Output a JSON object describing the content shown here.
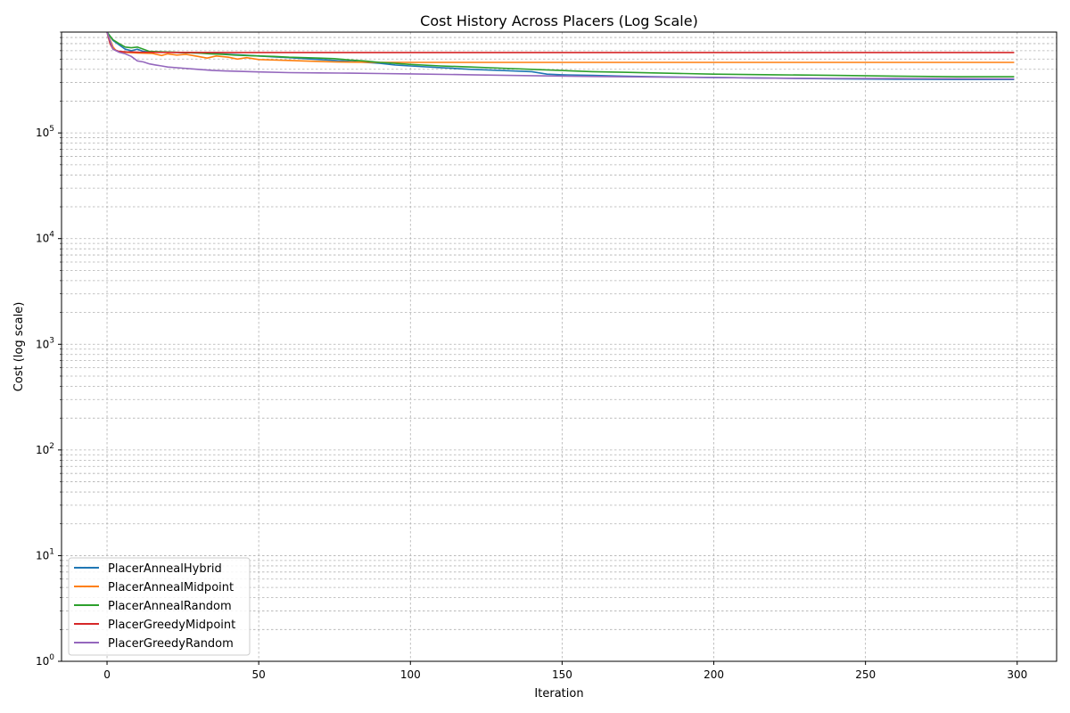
{
  "chart_data": {
    "type": "line",
    "title": "Cost History Across Placers (Log Scale)",
    "xlabel": "Iteration",
    "ylabel": "Cost (log scale)",
    "xlim": [
      -15,
      313
    ],
    "ylim": [
      1,
      900000
    ],
    "yscale": "log",
    "grid": true,
    "legend_position": "lower-left",
    "x_ticks": [
      "0",
      "50",
      "100",
      "150",
      "200",
      "250",
      "300"
    ],
    "y_tick_bases": [
      "10",
      "10",
      "10",
      "10",
      "10",
      "10"
    ],
    "y_tick_exponents": [
      "0",
      "1",
      "2",
      "3",
      "4",
      "5"
    ],
    "series": [
      {
        "name": "PlacerAnnealHybrid",
        "color": "#1f77b4",
        "points": [
          [
            0,
            900000
          ],
          [
            2,
            750000
          ],
          [
            4,
            680000
          ],
          [
            6,
            620000
          ],
          [
            8,
            600000
          ],
          [
            10,
            620000
          ],
          [
            12,
            590000
          ],
          [
            15,
            580000
          ],
          [
            20,
            580000
          ],
          [
            25,
            575000
          ],
          [
            30,
            570000
          ],
          [
            35,
            565000
          ],
          [
            40,
            555000
          ],
          [
            45,
            545000
          ],
          [
            50,
            535000
          ],
          [
            55,
            525000
          ],
          [
            60,
            515000
          ],
          [
            65,
            505000
          ],
          [
            70,
            495000
          ],
          [
            75,
            485000
          ],
          [
            80,
            475000
          ],
          [
            85,
            465000
          ],
          [
            90,
            455000
          ],
          [
            95,
            440000
          ],
          [
            100,
            430000
          ],
          [
            110,
            415000
          ],
          [
            120,
            400000
          ],
          [
            130,
            390000
          ],
          [
            140,
            380000
          ],
          [
            145,
            360000
          ],
          [
            150,
            355000
          ],
          [
            160,
            350000
          ],
          [
            170,
            345000
          ],
          [
            180,
            340000
          ],
          [
            190,
            337000
          ],
          [
            200,
            335000
          ],
          [
            220,
            330000
          ],
          [
            240,
            325000
          ],
          [
            260,
            322000
          ],
          [
            280,
            320000
          ],
          [
            299,
            320000
          ]
        ]
      },
      {
        "name": "PlacerAnnealMidpoint",
        "color": "#ff7f0e",
        "points": [
          [
            0,
            900000
          ],
          [
            2,
            650000
          ],
          [
            3,
            600000
          ],
          [
            5,
            580000
          ],
          [
            10,
            570000
          ],
          [
            15,
            565000
          ],
          [
            18,
            540000
          ],
          [
            20,
            560000
          ],
          [
            23,
            545000
          ],
          [
            26,
            555000
          ],
          [
            30,
            530000
          ],
          [
            33,
            510000
          ],
          [
            36,
            535000
          ],
          [
            40,
            520000
          ],
          [
            43,
            500000
          ],
          [
            46,
            515000
          ],
          [
            50,
            495000
          ],
          [
            55,
            490000
          ],
          [
            60,
            485000
          ],
          [
            65,
            480000
          ],
          [
            70,
            475000
          ],
          [
            75,
            470000
          ],
          [
            80,
            468000
          ],
          [
            90,
            465000
          ],
          [
            100,
            465000
          ],
          [
            150,
            465000
          ],
          [
            200,
            465000
          ],
          [
            250,
            465000
          ],
          [
            299,
            465000
          ]
        ]
      },
      {
        "name": "PlacerAnnealRandom",
        "color": "#2ca02c",
        "points": [
          [
            0,
            900000
          ],
          [
            2,
            760000
          ],
          [
            4,
            700000
          ],
          [
            6,
            650000
          ],
          [
            8,
            640000
          ],
          [
            10,
            650000
          ],
          [
            12,
            620000
          ],
          [
            14,
            590000
          ],
          [
            18,
            585000
          ],
          [
            22,
            580000
          ],
          [
            26,
            575000
          ],
          [
            30,
            570000
          ],
          [
            34,
            560000
          ],
          [
            38,
            555000
          ],
          [
            42,
            545000
          ],
          [
            46,
            540000
          ],
          [
            50,
            535000
          ],
          [
            55,
            530000
          ],
          [
            60,
            520000
          ],
          [
            65,
            515000
          ],
          [
            70,
            510000
          ],
          [
            75,
            505000
          ],
          [
            80,
            490000
          ],
          [
            85,
            480000
          ],
          [
            90,
            465000
          ],
          [
            95,
            455000
          ],
          [
            100,
            445000
          ],
          [
            110,
            430000
          ],
          [
            120,
            420000
          ],
          [
            130,
            410000
          ],
          [
            140,
            400000
          ],
          [
            150,
            390000
          ],
          [
            160,
            380000
          ],
          [
            170,
            375000
          ],
          [
            180,
            370000
          ],
          [
            190,
            365000
          ],
          [
            200,
            360000
          ],
          [
            220,
            355000
          ],
          [
            240,
            350000
          ],
          [
            260,
            345000
          ],
          [
            280,
            340000
          ],
          [
            299,
            340000
          ]
        ]
      },
      {
        "name": "PlacerGreedyMidpoint",
        "color": "#d62728",
        "points": [
          [
            0,
            900000
          ],
          [
            1,
            700000
          ],
          [
            2,
            620000
          ],
          [
            4,
            590000
          ],
          [
            6,
            585000
          ],
          [
            10,
            580000
          ],
          [
            20,
            578000
          ],
          [
            40,
            577000
          ],
          [
            60,
            577000
          ],
          [
            100,
            577000
          ],
          [
            150,
            577000
          ],
          [
            200,
            577000
          ],
          [
            250,
            577000
          ],
          [
            299,
            577000
          ]
        ]
      },
      {
        "name": "PlacerGreedyRandom",
        "color": "#9467bd",
        "points": [
          [
            0,
            900000
          ],
          [
            2,
            620000
          ],
          [
            4,
            580000
          ],
          [
            6,
            560000
          ],
          [
            8,
            530000
          ],
          [
            10,
            480000
          ],
          [
            12,
            470000
          ],
          [
            14,
            450000
          ],
          [
            16,
            440000
          ],
          [
            18,
            430000
          ],
          [
            20,
            420000
          ],
          [
            25,
            410000
          ],
          [
            30,
            400000
          ],
          [
            35,
            390000
          ],
          [
            40,
            385000
          ],
          [
            50,
            378000
          ],
          [
            60,
            372000
          ],
          [
            70,
            370000
          ],
          [
            80,
            368000
          ],
          [
            90,
            365000
          ],
          [
            100,
            362000
          ],
          [
            120,
            355000
          ],
          [
            140,
            348000
          ],
          [
            160,
            342000
          ],
          [
            180,
            338000
          ],
          [
            200,
            334000
          ],
          [
            220,
            330000
          ],
          [
            240,
            328000
          ],
          [
            260,
            327000
          ],
          [
            280,
            326000
          ],
          [
            299,
            325000
          ]
        ]
      }
    ]
  }
}
